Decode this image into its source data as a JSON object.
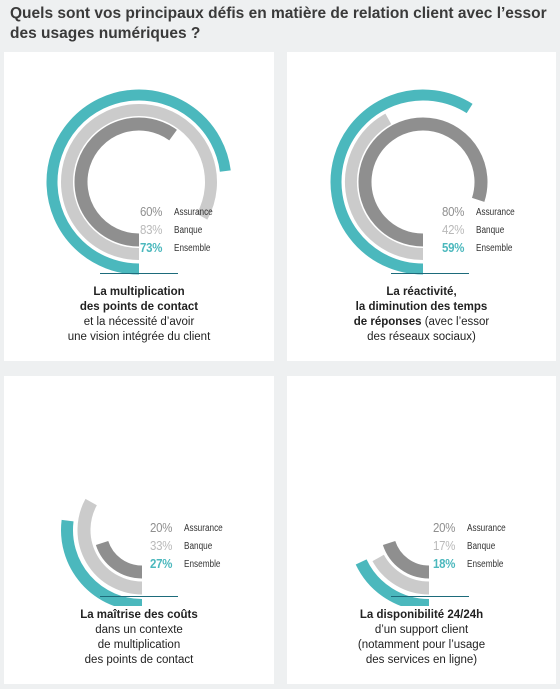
{
  "title": "Quels sont vos principaux défis en matière de relation client avec l’essor des usages numériques ?",
  "colors": {
    "assurance": "#8f8f8f",
    "banque": "#cbcbcb",
    "ensemble": "#4bb8bd"
  },
  "chart_data": [
    {
      "type": "radial-bar",
      "series": [
        {
          "name": "Assurance",
          "value": 60,
          "label": "60%"
        },
        {
          "name": "Banque",
          "value": 83,
          "label": "83%"
        },
        {
          "name": "Ensemble",
          "value": 73,
          "label": "73%"
        }
      ]
    },
    {
      "type": "radial-bar",
      "series": [
        {
          "name": "Assurance",
          "value": 80,
          "label": "80%"
        },
        {
          "name": "Banque",
          "value": 42,
          "label": "42%"
        },
        {
          "name": "Ensemble",
          "value": 59,
          "label": "59%"
        }
      ]
    },
    {
      "type": "radial-bar",
      "series": [
        {
          "name": "Assurance",
          "value": 20,
          "label": "20%"
        },
        {
          "name": "Banque",
          "value": 33,
          "label": "33%"
        },
        {
          "name": "Ensemble",
          "value": 27,
          "label": "27%"
        }
      ]
    },
    {
      "type": "radial-bar",
      "series": [
        {
          "name": "Assurance",
          "value": 20,
          "label": "20%"
        },
        {
          "name": "Banque",
          "value": 17,
          "label": "17%"
        },
        {
          "name": "Ensemble",
          "value": 18,
          "label": "18%"
        }
      ]
    }
  ],
  "panels": [
    {
      "desc_bold1": "La multiplication",
      "desc_bold2": "des points de contact",
      "desc_line3": "et la nécessité d’avoir",
      "desc_line4": "une vision intégrée du client"
    },
    {
      "desc_bold1": "La réactivité,",
      "desc_bold2": "la diminution des temps",
      "desc_bold3": "de réponses",
      "desc_line3_rest": " (avec l’essor",
      "desc_line4": "des réseaux sociaux)"
    },
    {
      "desc_bold1": "La maîtrise des coûts",
      "desc_line2": "dans un contexte",
      "desc_line3": "de multiplication",
      "desc_line4": "des points de contact"
    },
    {
      "desc_bold1": "La disponibilité 24/24h",
      "desc_line2": "d’un support client",
      "desc_line3": "(notamment pour l’usage",
      "desc_line4": "des services en ligne)"
    }
  ]
}
